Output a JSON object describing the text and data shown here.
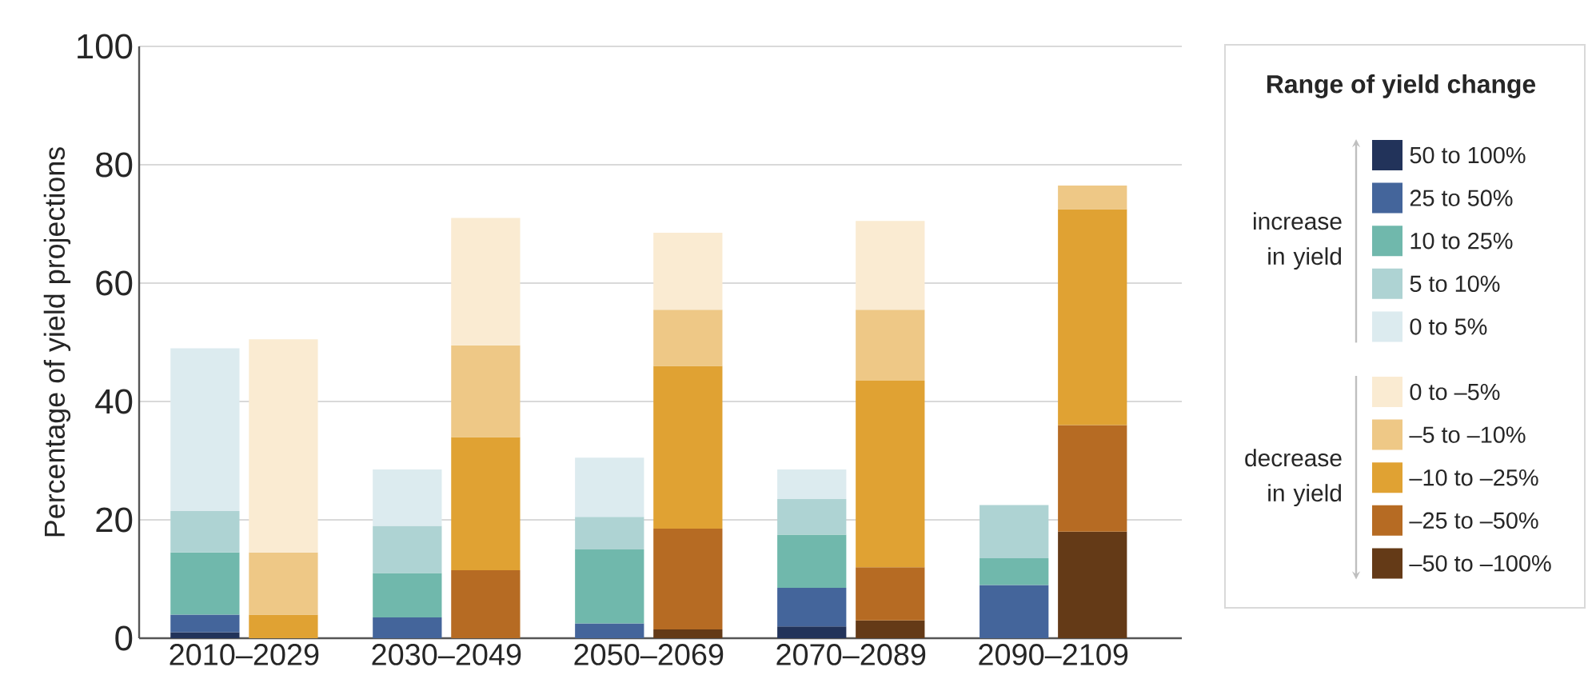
{
  "chart_data": {
    "type": "bar",
    "stacked": true,
    "ylabel": "Percentage of yield projections",
    "legend_title": "Range of yield change",
    "annotations": [
      "2010–2029",
      "2030–2049",
      "2050–2069",
      "2070–2089",
      "2090–2109",
      "increase in yield",
      "decrease in yield"
    ],
    "categories": [
      null,
      null,
      null,
      null,
      null,
      null,
      null,
      null,
      null,
      null
    ],
    "ylim": [
      0,
      100
    ],
    "yticks": [
      0,
      20,
      40,
      60,
      80,
      100
    ],
    "grid": "y",
    "legend": "right",
    "series": [
      {
        "name": "50 to 100%",
        "color": "#22335a",
        "values": [
          1,
          null,
          null,
          null,
          null,
          null,
          2,
          null,
          null,
          null
        ]
      },
      {
        "name": "25 to 50%",
        "color": "#44659b",
        "values": [
          3,
          null,
          3.5,
          null,
          2.5,
          null,
          6.5,
          null,
          9,
          null
        ]
      },
      {
        "name": "10 to 25%",
        "color": "#70b8ac",
        "values": [
          10.5,
          null,
          7.5,
          null,
          12.5,
          null,
          9,
          null,
          4.5,
          null
        ]
      },
      {
        "name": "5 to 10%",
        "color": "#aed3d3",
        "values": [
          7,
          null,
          8,
          null,
          5.5,
          null,
          6,
          null,
          9,
          null
        ]
      },
      {
        "name": "0 to 5%",
        "color": "#dcebef",
        "values": [
          27.5,
          null,
          9.5,
          null,
          10,
          null,
          5,
          null,
          null,
          null
        ]
      },
      {
        "name": "–50 to –100%",
        "color": "#643a17",
        "values": [
          null,
          null,
          null,
          null,
          null,
          1.5,
          null,
          3,
          null,
          18
        ]
      },
      {
        "name": "–25 to –50%",
        "color": "#b66b23",
        "values": [
          null,
          null,
          null,
          11.5,
          null,
          17,
          null,
          9,
          null,
          18
        ]
      },
      {
        "name": "–10 to –25%",
        "color": "#e0a233",
        "values": [
          null,
          4,
          null,
          22.5,
          null,
          27.5,
          null,
          31.5,
          null,
          36.5
        ]
      },
      {
        "name": "–5 to –10%",
        "color": "#eec886",
        "values": [
          null,
          10.5,
          null,
          15.5,
          null,
          9.5,
          null,
          12,
          null,
          4
        ]
      },
      {
        "name": "0 to –5%",
        "color": "#faebd2",
        "values": [
          null,
          36,
          null,
          21.5,
          null,
          13,
          null,
          15,
          null,
          null
        ]
      }
    ]
  }
}
